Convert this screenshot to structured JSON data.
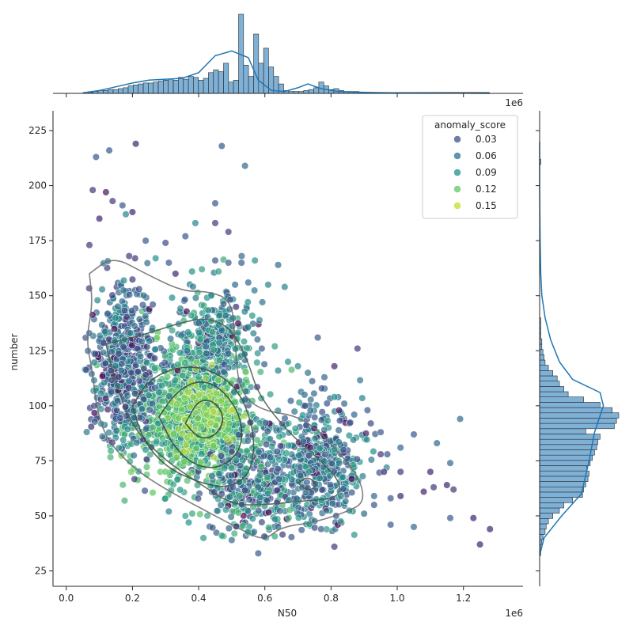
{
  "chart_data": {
    "type": "scatter",
    "title": "",
    "xlabel": "N50",
    "ylabel": "number",
    "x_offset_label": "1e6",
    "top_x_offset_label": "1e6",
    "xlim": [
      -0.04,
      1.38
    ],
    "ylim": [
      18,
      234
    ],
    "x_ticks": [
      0.0,
      0.2,
      0.4,
      0.6,
      0.8,
      1.0,
      1.2
    ],
    "x_tick_labels": [
      "0.0",
      "0.2",
      "0.4",
      "0.6",
      "0.8",
      "1.0",
      "1.2"
    ],
    "y_ticks": [
      25,
      50,
      75,
      100,
      125,
      150,
      175,
      200,
      225
    ],
    "y_tick_labels": [
      "25",
      "50",
      "75",
      "100",
      "125",
      "150",
      "175",
      "200",
      "225"
    ],
    "grid": false,
    "legend": {
      "title": "anomaly_score",
      "placement": "top-right",
      "entries": [
        {
          "label": "0.03",
          "color": "#3b528b"
        },
        {
          "label": "0.06",
          "color": "#2c728e"
        },
        {
          "label": "0.09",
          "color": "#21918c"
        },
        {
          "label": "0.12",
          "color": "#5ec962"
        },
        {
          "label": "0.15",
          "color": "#bddf26"
        }
      ]
    },
    "colormap": [
      "#440154",
      "#3b528b",
      "#21918c",
      "#5ec962",
      "#fde725"
    ],
    "color_range": [
      0.0,
      0.18
    ],
    "kde_color": "#1f77b4",
    "hist_color": "#7fb0d6",
    "contour_color": "#2f4f2f",
    "scatter_points": [
      [
        0.07,
        173,
        0.03
      ],
      [
        0.08,
        198,
        0.03
      ],
      [
        0.09,
        213,
        0.05
      ],
      [
        0.13,
        216,
        0.05
      ],
      [
        0.21,
        219,
        0.02
      ],
      [
        0.47,
        218,
        0.05
      ],
      [
        0.54,
        209,
        0.06
      ],
      [
        0.12,
        197,
        0.01
      ],
      [
        0.14,
        193,
        0.03
      ],
      [
        0.17,
        191,
        0.05
      ],
      [
        0.2,
        188,
        0.02
      ],
      [
        0.45,
        192,
        0.05
      ],
      [
        0.39,
        183,
        0.08
      ],
      [
        0.45,
        183,
        0.03
      ],
      [
        0.49,
        179,
        0.03
      ],
      [
        0.36,
        177,
        0.05
      ],
      [
        0.18,
        187,
        0.08
      ],
      [
        0.1,
        185,
        0.02
      ],
      [
        0.24,
        175,
        0.05
      ],
      [
        0.3,
        174,
        0.04
      ],
      [
        0.19,
        168,
        0.03
      ],
      [
        0.31,
        165,
        0.05
      ],
      [
        0.27,
        167,
        0.09
      ],
      [
        0.45,
        166,
        0.05
      ],
      [
        0.53,
        168,
        0.06
      ],
      [
        0.49,
        165,
        0.05
      ],
      [
        0.41,
        162,
        0.1
      ],
      [
        0.38,
        161,
        0.09
      ],
      [
        0.46,
        161,
        0.1
      ],
      [
        0.64,
        164,
        0.06
      ],
      [
        0.57,
        166,
        0.09
      ],
      [
        0.55,
        156,
        0.06
      ],
      [
        0.61,
        155,
        0.08
      ],
      [
        0.66,
        154,
        0.08
      ],
      [
        0.51,
        155,
        0.06
      ],
      [
        0.33,
        160,
        0.02
      ],
      [
        0.22,
        153,
        0.04
      ],
      [
        0.76,
        131,
        0.05
      ],
      [
        0.88,
        126,
        0.03
      ],
      [
        0.63,
        127,
        0.1
      ],
      [
        0.67,
        120,
        0.09
      ],
      [
        0.81,
        118,
        0.02
      ],
      [
        0.7,
        118,
        0.08
      ],
      [
        0.73,
        115,
        0.07
      ],
      [
        0.64,
        116,
        0.08
      ],
      [
        0.78,
        113,
        0.06
      ],
      [
        0.72,
        105,
        0.06
      ],
      [
        0.81,
        104,
        0.09
      ],
      [
        0.84,
        101,
        0.06
      ],
      [
        0.91,
        98,
        0.05
      ],
      [
        0.87,
        96,
        0.06
      ],
      [
        0.92,
        92,
        0.04
      ],
      [
        1.05,
        87,
        0.05
      ],
      [
        1.12,
        83,
        0.06
      ],
      [
        1.19,
        94,
        0.06
      ],
      [
        0.97,
        78,
        0.05
      ],
      [
        1.01,
        81,
        0.06
      ],
      [
        0.96,
        70,
        0.02
      ],
      [
        1.01,
        70,
        0.03
      ],
      [
        1.1,
        70,
        0.02
      ],
      [
        1.16,
        74,
        0.06
      ],
      [
        1.08,
        61,
        0.02
      ],
      [
        1.11,
        63,
        0.03
      ],
      [
        1.15,
        64,
        0.02
      ],
      [
        1.17,
        62,
        0.03
      ],
      [
        0.93,
        59,
        0.06
      ],
      [
        0.98,
        58,
        0.05
      ],
      [
        1.01,
        59,
        0.02
      ],
      [
        0.9,
        51,
        0.06
      ],
      [
        0.93,
        55,
        0.05
      ],
      [
        0.98,
        46,
        0.05
      ],
      [
        1.05,
        45,
        0.06
      ],
      [
        1.16,
        49,
        0.05
      ],
      [
        1.23,
        49,
        0.02
      ],
      [
        1.28,
        44,
        0.02
      ],
      [
        1.25,
        37,
        0.02
      ],
      [
        0.81,
        36,
        0.03
      ],
      [
        0.77,
        44,
        0.05
      ],
      [
        0.64,
        45,
        0.06
      ],
      [
        0.58,
        33,
        0.05
      ],
      [
        0.5,
        39,
        0.06
      ],
      [
        0.47,
        41,
        0.1
      ],
      [
        0.36,
        50,
        0.1
      ],
      [
        0.31,
        52,
        0.08
      ],
      [
        0.37,
        47,
        0.09
      ],
      [
        0.95,
        88,
        0.05
      ],
      [
        0.95,
        78,
        0.03
      ]
    ],
    "top_hist": {
      "bin_start": 0.066,
      "bin_width": 0.01515,
      "counts": [
        1,
        2,
        3,
        3,
        4,
        4,
        5,
        6,
        8,
        9,
        10,
        11,
        11,
        12,
        13,
        14,
        15,
        14,
        17,
        15,
        18,
        17,
        14,
        16,
        22,
        25,
        23,
        32,
        12,
        14,
        84,
        30,
        18,
        63,
        32,
        48,
        28,
        18,
        10,
        3,
        2,
        2,
        2,
        3,
        4,
        6,
        12,
        8,
        4,
        5,
        3,
        2,
        2,
        2,
        1,
        1,
        1,
        1,
        1,
        1,
        1,
        1,
        1,
        1,
        1,
        1,
        1,
        1,
        1,
        1,
        1,
        1,
        1,
        1,
        1,
        1,
        1,
        1,
        1,
        1
      ],
      "kde": [
        [
          0.05,
          0.5
        ],
        [
          0.1,
          3
        ],
        [
          0.15,
          7
        ],
        [
          0.2,
          11
        ],
        [
          0.25,
          14
        ],
        [
          0.3,
          15
        ],
        [
          0.35,
          16
        ],
        [
          0.4,
          22
        ],
        [
          0.45,
          40
        ],
        [
          0.5,
          45
        ],
        [
          0.55,
          38
        ],
        [
          0.58,
          14
        ],
        [
          0.62,
          3
        ],
        [
          0.66,
          2
        ],
        [
          0.7,
          6
        ],
        [
          0.73,
          10
        ],
        [
          0.77,
          5
        ],
        [
          0.82,
          2
        ],
        [
          0.9,
          1
        ],
        [
          1.0,
          0.5
        ],
        [
          1.28,
          0
        ]
      ]
    },
    "right_hist": {
      "bin_start": 32,
      "bin_width": 2.4,
      "counts": [
        1,
        1,
        2,
        3,
        5,
        6,
        8,
        12,
        18,
        22,
        30,
        39,
        40,
        42,
        44,
        45,
        43,
        46,
        48,
        50,
        52,
        53,
        55,
        42,
        68,
        70,
        72,
        66,
        55,
        40,
        26,
        22,
        18,
        16,
        12,
        8,
        5,
        4,
        3,
        2,
        2,
        1,
        1,
        1,
        1,
        0,
        0,
        0,
        0,
        0,
        0,
        0,
        0,
        0,
        0,
        0,
        0,
        0,
        0,
        0,
        0,
        0,
        0,
        0,
        0,
        0,
        0,
        0,
        0,
        0,
        0,
        0,
        0,
        0,
        1
      ],
      "kde": [
        [
          32,
          0
        ],
        [
          40,
          4
        ],
        [
          50,
          20
        ],
        [
          60,
          38
        ],
        [
          75,
          45
        ],
        [
          88,
          50
        ],
        [
          100,
          58
        ],
        [
          106,
          55
        ],
        [
          112,
          30
        ],
        [
          120,
          18
        ],
        [
          130,
          10
        ],
        [
          140,
          5
        ],
        [
          150,
          2
        ],
        [
          160,
          1
        ],
        [
          175,
          0.4
        ],
        [
          200,
          0
        ],
        [
          220,
          0
        ]
      ]
    },
    "contours": [
      [
        [
          0.07,
          160
        ],
        [
          0.08,
          146
        ],
        [
          0.06,
          130
        ],
        [
          0.08,
          115
        ],
        [
          0.09,
          100
        ],
        [
          0.12,
          85
        ],
        [
          0.2,
          72
        ],
        [
          0.3,
          62
        ],
        [
          0.45,
          50
        ],
        [
          0.55,
          42
        ],
        [
          0.6,
          39
        ],
        [
          0.65,
          45
        ],
        [
          0.75,
          47
        ],
        [
          0.85,
          52
        ],
        [
          0.9,
          56
        ],
        [
          0.89,
          66
        ],
        [
          0.83,
          78
        ],
        [
          0.72,
          95
        ],
        [
          0.58,
          98
        ],
        [
          0.52,
          108
        ],
        [
          0.51,
          130
        ],
        [
          0.5,
          148
        ],
        [
          0.43,
          152
        ],
        [
          0.35,
          152
        ],
        [
          0.24,
          160
        ],
        [
          0.14,
          168
        ],
        [
          0.07,
          160
        ]
      ],
      [
        [
          0.12,
          128
        ],
        [
          0.15,
          110
        ],
        [
          0.2,
          90
        ],
        [
          0.3,
          75
        ],
        [
          0.4,
          65
        ],
        [
          0.5,
          55
        ],
        [
          0.6,
          55
        ],
        [
          0.73,
          57
        ],
        [
          0.82,
          58
        ],
        [
          0.83,
          65
        ],
        [
          0.77,
          75
        ],
        [
          0.67,
          88
        ],
        [
          0.58,
          105
        ],
        [
          0.55,
          120
        ],
        [
          0.5,
          135
        ],
        [
          0.43,
          140
        ],
        [
          0.35,
          138
        ],
        [
          0.25,
          133
        ],
        [
          0.12,
          128
        ]
      ],
      [
        [
          0.2,
          100
        ],
        [
          0.23,
          85
        ],
        [
          0.3,
          72
        ],
        [
          0.42,
          64
        ],
        [
          0.5,
          63
        ],
        [
          0.56,
          70
        ],
        [
          0.57,
          88
        ],
        [
          0.52,
          108
        ],
        [
          0.43,
          117
        ],
        [
          0.34,
          118
        ],
        [
          0.25,
          112
        ],
        [
          0.2,
          100
        ]
      ],
      [
        [
          0.28,
          95
        ],
        [
          0.33,
          80
        ],
        [
          0.4,
          72
        ],
        [
          0.47,
          72
        ],
        [
          0.53,
          80
        ],
        [
          0.53,
          95
        ],
        [
          0.47,
          108
        ],
        [
          0.4,
          112
        ],
        [
          0.33,
          106
        ],
        [
          0.28,
          95
        ]
      ],
      [
        [
          0.36,
          92
        ],
        [
          0.4,
          85
        ],
        [
          0.45,
          86
        ],
        [
          0.48,
          94
        ],
        [
          0.45,
          102
        ],
        [
          0.4,
          103
        ],
        [
          0.36,
          92
        ]
      ],
      [
        [
          0.7,
          65
        ],
        [
          0.73,
          61
        ],
        [
          0.76,
          64
        ],
        [
          0.73,
          68
        ],
        [
          0.7,
          65
        ]
      ]
    ]
  }
}
